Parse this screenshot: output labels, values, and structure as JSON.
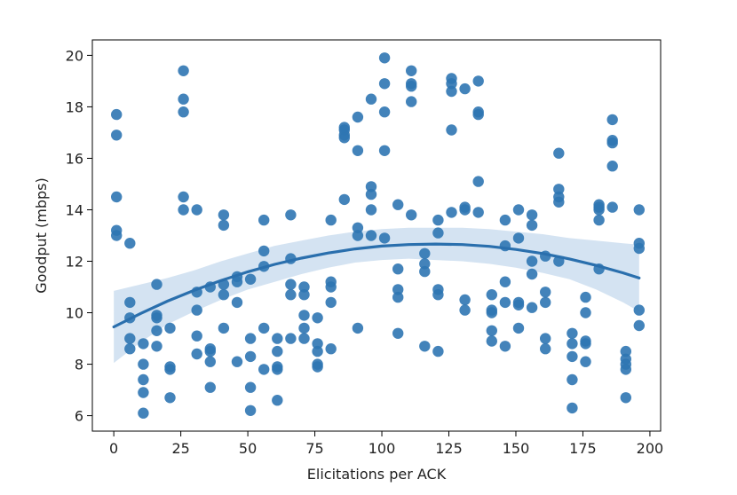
{
  "chart_data": {
    "type": "scatter",
    "title": "",
    "xlabel": "Elicitations per ACK",
    "ylabel": "Goodput (mbps)",
    "xlim": [
      -8,
      204
    ],
    "ylim": [
      5.4,
      20.6
    ],
    "xticks": [
      0,
      25,
      50,
      75,
      100,
      125,
      150,
      175,
      200
    ],
    "yticks": [
      6,
      8,
      10,
      12,
      14,
      16,
      18,
      20
    ],
    "grid": false,
    "point_color": "#2f76b2",
    "fit_color": "#2a6fad",
    "band_color": "#c6d9ee",
    "points": [
      [
        1,
        17.7
      ],
      [
        1,
        16.9
      ],
      [
        1,
        14.5
      ],
      [
        1,
        13.2
      ],
      [
        1,
        13.0
      ],
      [
        6,
        12.7
      ],
      [
        6,
        10.4
      ],
      [
        6,
        9.8
      ],
      [
        6,
        9.0
      ],
      [
        6,
        8.6
      ],
      [
        11,
        8.8
      ],
      [
        11,
        8.0
      ],
      [
        11,
        7.4
      ],
      [
        11,
        6.9
      ],
      [
        11,
        6.1
      ],
      [
        16,
        11.1
      ],
      [
        16,
        9.9
      ],
      [
        16,
        9.8
      ],
      [
        16,
        9.3
      ],
      [
        16,
        8.7
      ],
      [
        21,
        9.4
      ],
      [
        21,
        7.9
      ],
      [
        21,
        7.8
      ],
      [
        21,
        6.7
      ],
      [
        26,
        19.4
      ],
      [
        26,
        18.3
      ],
      [
        26,
        17.8
      ],
      [
        26,
        14.5
      ],
      [
        26,
        14.0
      ],
      [
        31,
        14.0
      ],
      [
        31,
        10.8
      ],
      [
        31,
        10.1
      ],
      [
        31,
        9.1
      ],
      [
        31,
        8.4
      ],
      [
        36,
        11.0
      ],
      [
        36,
        8.6
      ],
      [
        36,
        8.5
      ],
      [
        36,
        8.1
      ],
      [
        36,
        7.1
      ],
      [
        41,
        13.8
      ],
      [
        41,
        13.4
      ],
      [
        41,
        11.1
      ],
      [
        41,
        10.7
      ],
      [
        41,
        9.4
      ],
      [
        46,
        11.4
      ],
      [
        46,
        11.2
      ],
      [
        46,
        10.4
      ],
      [
        46,
        8.1
      ],
      [
        51,
        11.3
      ],
      [
        51,
        9.0
      ],
      [
        51,
        8.3
      ],
      [
        51,
        7.1
      ],
      [
        51,
        6.2
      ],
      [
        56,
        13.6
      ],
      [
        56,
        12.4
      ],
      [
        56,
        11.8
      ],
      [
        56,
        9.4
      ],
      [
        56,
        7.8
      ],
      [
        61,
        9.0
      ],
      [
        61,
        8.5
      ],
      [
        61,
        7.9
      ],
      [
        61,
        7.8
      ],
      [
        61,
        6.6
      ],
      [
        66,
        13.8
      ],
      [
        66,
        12.1
      ],
      [
        66,
        11.1
      ],
      [
        66,
        10.7
      ],
      [
        66,
        9.0
      ],
      [
        71,
        11.0
      ],
      [
        71,
        10.7
      ],
      [
        71,
        9.9
      ],
      [
        71,
        9.4
      ],
      [
        71,
        9.0
      ],
      [
        76,
        9.8
      ],
      [
        76,
        8.8
      ],
      [
        76,
        8.5
      ],
      [
        76,
        8.0
      ],
      [
        76,
        7.9
      ],
      [
        81,
        13.6
      ],
      [
        81,
        11.2
      ],
      [
        81,
        11.0
      ],
      [
        81,
        10.4
      ],
      [
        81,
        8.6
      ],
      [
        86,
        17.2
      ],
      [
        86,
        17.1
      ],
      [
        86,
        16.9
      ],
      [
        86,
        16.8
      ],
      [
        86,
        14.4
      ],
      [
        91,
        17.6
      ],
      [
        91,
        16.3
      ],
      [
        91,
        13.3
      ],
      [
        91,
        13.0
      ],
      [
        91,
        9.4
      ],
      [
        96,
        18.3
      ],
      [
        96,
        14.9
      ],
      [
        96,
        14.6
      ],
      [
        96,
        14.0
      ],
      [
        96,
        13.0
      ],
      [
        101,
        19.9
      ],
      [
        101,
        18.9
      ],
      [
        101,
        17.8
      ],
      [
        101,
        16.3
      ],
      [
        101,
        12.9
      ],
      [
        106,
        14.2
      ],
      [
        106,
        11.7
      ],
      [
        106,
        10.9
      ],
      [
        106,
        10.6
      ],
      [
        106,
        9.2
      ],
      [
        111,
        19.4
      ],
      [
        111,
        18.9
      ],
      [
        111,
        18.8
      ],
      [
        111,
        18.2
      ],
      [
        111,
        13.8
      ],
      [
        116,
        12.3
      ],
      [
        116,
        11.9
      ],
      [
        116,
        11.6
      ],
      [
        116,
        8.7
      ],
      [
        121,
        13.6
      ],
      [
        121,
        13.1
      ],
      [
        121,
        10.9
      ],
      [
        121,
        10.7
      ],
      [
        121,
        8.5
      ],
      [
        126,
        19.1
      ],
      [
        126,
        18.9
      ],
      [
        126,
        18.6
      ],
      [
        126,
        17.1
      ],
      [
        126,
        13.9
      ],
      [
        131,
        18.7
      ],
      [
        131,
        14.1
      ],
      [
        131,
        14.0
      ],
      [
        131,
        10.5
      ],
      [
        131,
        10.1
      ],
      [
        136,
        19.0
      ],
      [
        136,
        17.8
      ],
      [
        136,
        17.7
      ],
      [
        136,
        15.1
      ],
      [
        136,
        13.9
      ],
      [
        141,
        10.7
      ],
      [
        141,
        10.1
      ],
      [
        141,
        10.0
      ],
      [
        141,
        9.3
      ],
      [
        141,
        8.9
      ],
      [
        146,
        13.6
      ],
      [
        146,
        12.6
      ],
      [
        146,
        11.2
      ],
      [
        146,
        10.4
      ],
      [
        146,
        8.7
      ],
      [
        151,
        14.0
      ],
      [
        151,
        12.9
      ],
      [
        151,
        10.4
      ],
      [
        151,
        10.3
      ],
      [
        151,
        9.4
      ],
      [
        156,
        13.8
      ],
      [
        156,
        13.4
      ],
      [
        156,
        12.0
      ],
      [
        156,
        11.5
      ],
      [
        156,
        10.2
      ],
      [
        161,
        12.2
      ],
      [
        161,
        10.8
      ],
      [
        161,
        10.4
      ],
      [
        161,
        9.0
      ],
      [
        161,
        8.6
      ],
      [
        166,
        16.2
      ],
      [
        166,
        14.8
      ],
      [
        166,
        14.5
      ],
      [
        166,
        14.3
      ],
      [
        166,
        12.0
      ],
      [
        171,
        9.2
      ],
      [
        171,
        8.8
      ],
      [
        171,
        8.3
      ],
      [
        171,
        7.4
      ],
      [
        171,
        6.3
      ],
      [
        176,
        10.6
      ],
      [
        176,
        10.0
      ],
      [
        176,
        8.9
      ],
      [
        176,
        8.8
      ],
      [
        176,
        8.1
      ],
      [
        181,
        14.2
      ],
      [
        181,
        14.1
      ],
      [
        181,
        14.0
      ],
      [
        181,
        13.6
      ],
      [
        181,
        11.7
      ],
      [
        186,
        17.5
      ],
      [
        186,
        16.7
      ],
      [
        186,
        16.6
      ],
      [
        186,
        15.7
      ],
      [
        186,
        14.1
      ],
      [
        191,
        8.5
      ],
      [
        191,
        8.2
      ],
      [
        191,
        8.0
      ],
      [
        191,
        7.8
      ],
      [
        191,
        6.7
      ],
      [
        196,
        14.0
      ],
      [
        196,
        12.7
      ],
      [
        196,
        12.5
      ],
      [
        196,
        10.1
      ],
      [
        196,
        9.5
      ]
    ],
    "fit": {
      "type": "quadratic",
      "x": [
        0,
        10,
        20,
        30,
        40,
        50,
        60,
        70,
        80,
        90,
        100,
        110,
        120,
        130,
        140,
        150,
        160,
        170,
        180,
        190,
        196
      ],
      "y": [
        9.45,
        9.97,
        10.45,
        10.87,
        11.25,
        11.59,
        11.88,
        12.12,
        12.32,
        12.48,
        12.59,
        12.65,
        12.67,
        12.65,
        12.58,
        12.46,
        12.3,
        12.09,
        11.84,
        11.55,
        11.35
      ],
      "ci_lower": [
        8.05,
        8.85,
        9.55,
        10.05,
        10.5,
        10.9,
        11.2,
        11.5,
        11.75,
        11.95,
        12.05,
        12.1,
        12.05,
        12.0,
        11.9,
        11.75,
        11.55,
        11.3,
        10.9,
        10.4,
        10.05
      ],
      "ci_upper": [
        10.85,
        11.1,
        11.35,
        11.65,
        12.0,
        12.3,
        12.6,
        12.8,
        13.0,
        13.15,
        13.25,
        13.3,
        13.3,
        13.3,
        13.25,
        13.15,
        13.05,
        12.9,
        12.8,
        12.7,
        12.65
      ]
    }
  }
}
